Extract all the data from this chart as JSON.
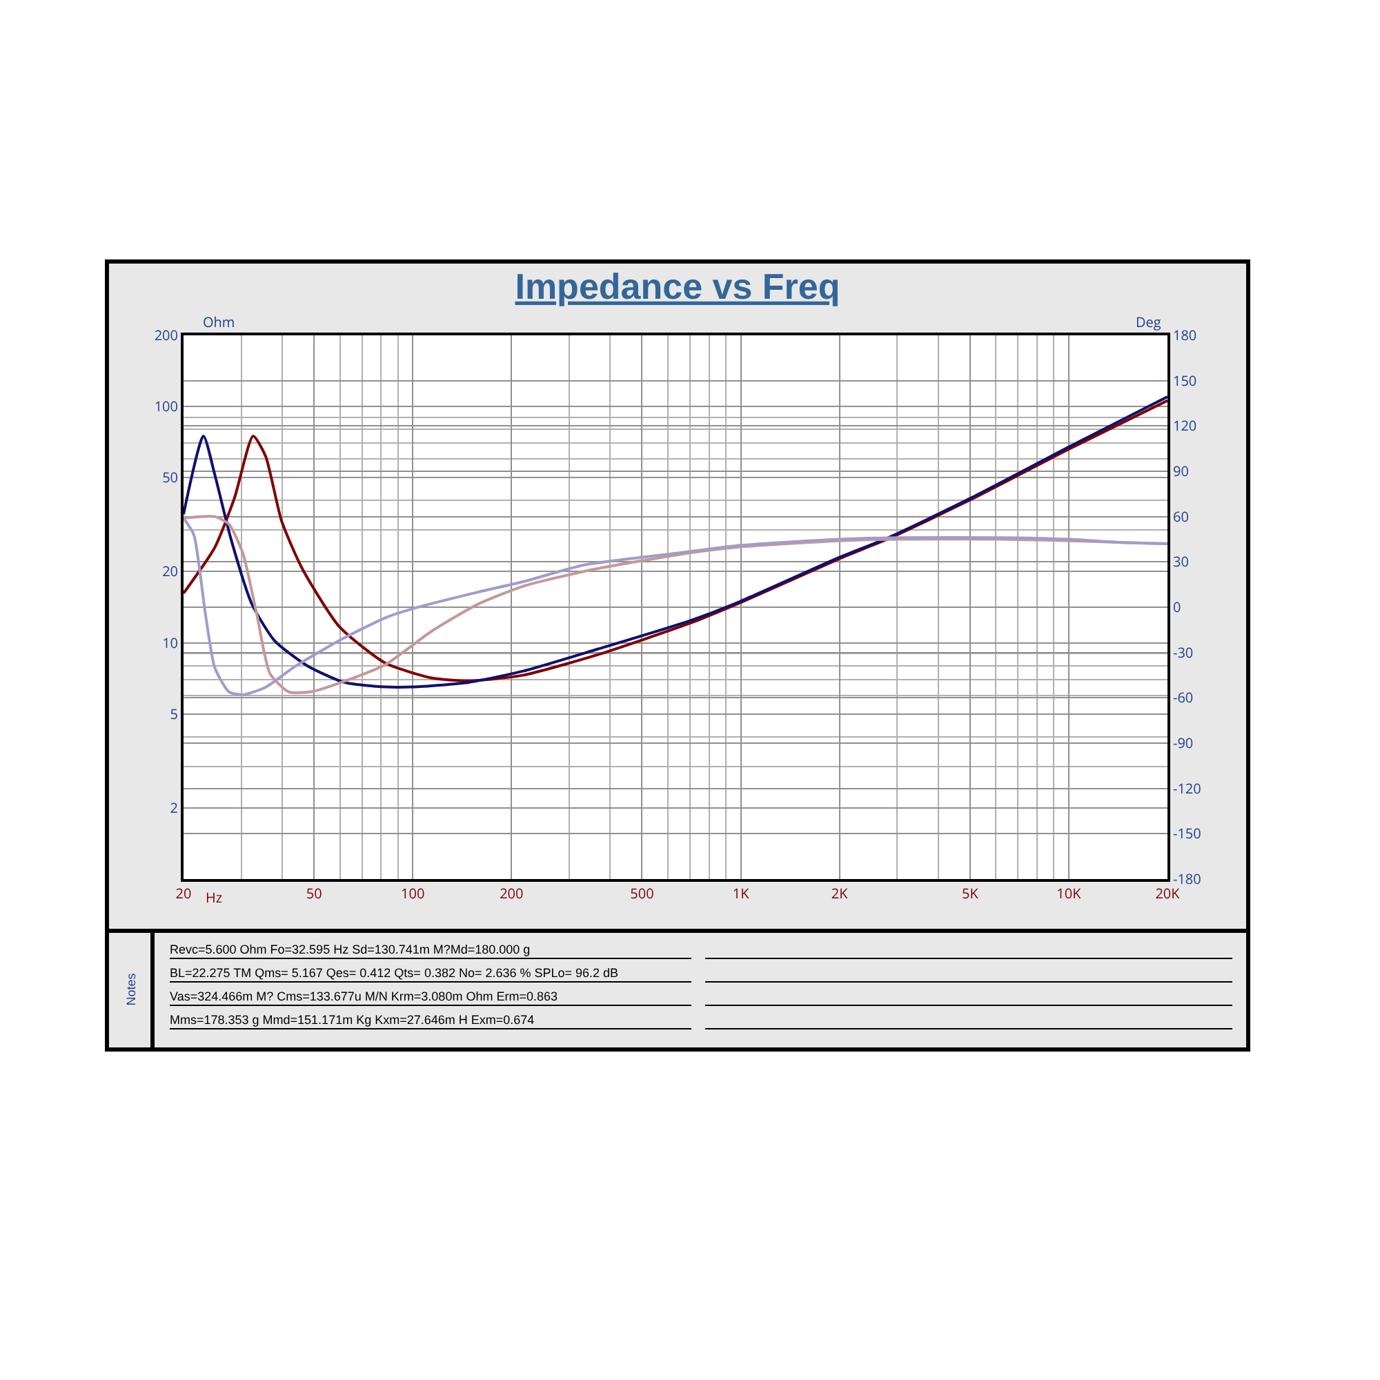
{
  "chart_data": {
    "type": "line",
    "title": "Impedance vs Freq",
    "xlabel": "Hz",
    "ylabel": "Ohm",
    "y2label": "Deg",
    "log": "xy",
    "grid": true,
    "line_style": "solid",
    "xlim": [
      20,
      20000
    ],
    "xticks": [
      20,
      50,
      100,
      200,
      500,
      {
        "value": 1000,
        "label": "1K"
      },
      {
        "value": 2000,
        "label": "2K"
      },
      {
        "value": 5000,
        "label": "5K"
      },
      {
        "value": 10000,
        "label": "10K"
      },
      {
        "value": 20000,
        "label": "20K"
      }
    ],
    "ylim": [
      1,
      200
    ],
    "yticks": [
      2,
      5,
      10,
      20,
      50,
      100,
      200
    ],
    "y2lim": [
      -180,
      180
    ],
    "y2ticks": [
      -180,
      -150,
      -120,
      -90,
      -60,
      -30,
      0,
      30,
      60,
      90,
      120,
      150,
      180
    ],
    "series": [
      {
        "color": "#c49898",
        "axis": "y2",
        "x": [
          20,
          24.9,
          27.5,
          30.3,
          33.4,
          36.7,
          41.8,
          49,
          63.7,
          82.5,
          114,
          158,
          218,
          355,
          700,
          1000,
          2000,
          3060,
          6220,
          10000,
          14200,
          20000
        ],
        "values": [
          59,
          60,
          55,
          36,
          -4,
          -44,
          -56,
          -56,
          -48,
          -38,
          -16,
          2,
          14,
          25,
          36,
          40,
          44,
          45,
          45,
          44,
          43,
          42
        ]
      },
      {
        "color": "#a09ccc",
        "axis": "y2",
        "x": [
          20,
          21.5,
          23.3,
          24.9,
          27.5,
          30.3,
          35.6,
          43.2,
          59.7,
          82.5,
          100,
          158,
          218,
          333,
          650,
          1000,
          2000,
          3060,
          6220,
          10000,
          14200,
          20000
        ],
        "values": [
          59,
          48,
          -4,
          -40,
          -56,
          -58,
          -53,
          -40,
          -22,
          -7,
          -1,
          10,
          17,
          28,
          36,
          41,
          45,
          46,
          46,
          45,
          43,
          42
        ]
      },
      {
        "color": "#800000",
        "x": [
          20,
          24.9,
          28.6,
          32.6,
          35.6,
          39.8,
          46.1,
          59.7,
          82.5,
          114,
          148,
          218,
          366,
          700,
          1000,
          2000,
          2860,
          5050,
          10000,
          20000
        ],
        "values": [
          16.2,
          25.3,
          41,
          75,
          61.5,
          32.8,
          20.5,
          11.7,
          8.2,
          7.1,
          6.9,
          7.3,
          8.9,
          12.1,
          14.8,
          22.7,
          27.8,
          40.5,
          66,
          106
        ]
      },
      {
        "color": "#10106e",
        "x": [
          20,
          23,
          24.9,
          27.9,
          32.3,
          37.9,
          47.6,
          61.7,
          82.5,
          100,
          148,
          218,
          366,
          700,
          1000,
          2000,
          2860,
          5050,
          10000,
          20000
        ],
        "values": [
          35,
          75,
          51.5,
          27.5,
          14.6,
          10.2,
          8,
          6.8,
          6.5,
          6.5,
          6.8,
          7.6,
          9.4,
          12.4,
          15,
          23,
          28.1,
          41.1,
          67.4,
          110
        ]
      }
    ],
    "annotations": [
      "Notes",
      "Revc=5.600 Ohm  Fo=32.595 Hz  Sd=130.741m M?Md=180.000 g",
      "BL=22.275 TM  Qms= 5.167  Qes= 0.412  Qts= 0.382  No= 2.636 %  SPLo= 96.2 dB",
      "Vas=324.466m M? Cms=133.677u M/N  Krm=3.080m Ohm  Erm=0.863",
      "Mms=178.353 g  Mmd=151.171m Kg  Kxm=27.646m H  Exm=0.674"
    ]
  }
}
